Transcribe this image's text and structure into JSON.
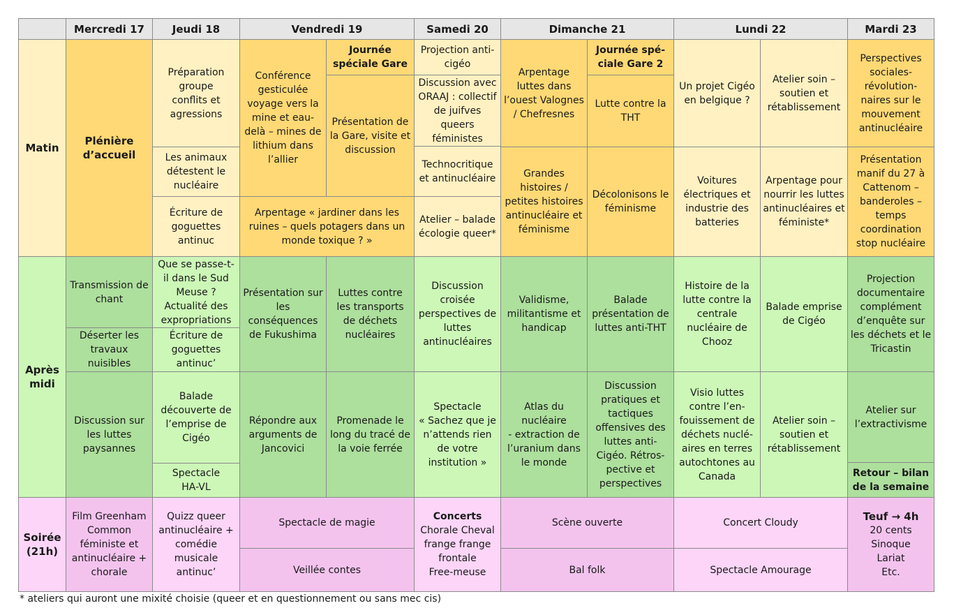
{
  "title": "",
  "colors": {
    "header": "#e6e6e6",
    "matin_dark": "#fed975",
    "matin_light": "#fff1c2",
    "apres_dark": "#addf9d",
    "apres_light": "#ccf7b7",
    "soiree_dark": "#f3c3ee",
    "soiree_light": "#fcd5f8",
    "border": "#8a8a8a"
  },
  "days": [
    "Mercredi 17",
    "Jeudi 18",
    "Vendredi 19",
    "Samedi 20",
    "Dimanche 21",
    "Lundi 22",
    "Mardi 23"
  ],
  "periods": {
    "matin": "Matin",
    "apres": "Après\nmidi",
    "soiree": "Soirée\n(21h)"
  },
  "sessions": {
    "s01": "Plénière\nd’accueil",
    "s02": "Préparation\ngroupe\nconflits et\nagressions",
    "s03": "Les animaux\ndétestent le\nnucléaire",
    "s04": "Écriture de\ngoguettes\nantinuc",
    "s05": "Conférence\ngesticulée\nvoyage vers la\nmine et eau-\ndelà – mines de\nlithium dans\nl’allier",
    "s06": "Journée\nspéciale Gare",
    "s07": "Présentation de\nla Gare, visite et\ndiscussion",
    "s08": "Arpentage « jardiner dans les\nruines – quels potagers dans un\nmonde toxique ? »",
    "s09": "Projection anti-\ncigéo",
    "s10": "Discussion avec\nORAAJ : collectif\nde juifves\nqueers\nféministes",
    "s11": "Technocritique\net antinucléaire",
    "s12": "Atelier – balade\nécologie queer*",
    "s13": "Arpentage\nluttes dans\nl’ouest Valognes\n/ Chefresnes",
    "s14": "Grandes\nhistoires /\npetites histoires\nantinucléaire et\nféminisme",
    "s15": "Journée spé-\nciale Gare 2",
    "s16": "Lutte contre la\nTHT",
    "s17": "Décolonisons  le\nféminisme",
    "s18": "Un projet Cigéo\nen belgique ?",
    "s19": "Voitures\nélectriques et\nindustrie des\nbatteries",
    "s20": "Atelier soin –\nsoutien et\nrétablissement",
    "s21": "Arpentage pour\nnourrir les luttes\nantinucléaires et\nféministe*",
    "s22": "Perspectives\nsociales-\nrévolution-\nnaires sur le\nmouvement\nantinucléaire",
    "s23": "Présentation\nmanif du 27 à\nCattenom –\nbanderoles –\ntemps\ncoordination\nstop nucléaire",
    "s24": "Transmission de\nchant",
    "s25": "Déserter les\ntravaux\nnuisibles",
    "s26": "Discussion sur\nles luttes\npaysannes",
    "s27": "Que se passe-t-\nil dans le Sud\nMeuse ?\nActualité des\nexpropriations",
    "s28": "Écriture de\ngoguettes\nantinuc’",
    "s29": "Balade\ndécouverte de\nl’emprise de\nCigéo",
    "s30": "Spectacle\nHA-VL",
    "s31": "Présentation sur\nles\nconséquences\nde Fukushima",
    "s32": "Luttes contre\nles transports\nde déchets\nnucléaires",
    "s33": "Répondre aux\narguments de\nJancovici",
    "s34": "Promenade le\nlong du tracé de\nla voie ferrée",
    "s35": "Discussion\ncroisée\nperspectives de\nluttes\nantinucléaires",
    "s36": "Spectacle\n« Sachez que je\nn’attends rien\nde votre\ninstitution »",
    "s37": "Validisme,\nmilitantisme et\nhandicap",
    "s38": "Atlas du\nnucléaire\n- extraction de\nl’uranium dans\nle monde",
    "s39": "Balade\nprésentation de\nluttes anti-THT",
    "s40": "Discussion\npratiques et\ntactiques\noffensives des\nluttes anti-\nCigéo. Rétros-\npective et\nperspectives",
    "s41": "Histoire de la\nlutte contre la\ncentrale\nnucléaire de\nChooz",
    "s42": "Visio luttes\ncontre l’en-\nfouissement de\ndéchets nuclé-\naires en terres\nautochtones au\nCanada",
    "s43": "Balade emprise\nde Cigéo",
    "s44": "Atelier soin –\nsoutien et\nrétablissement",
    "s45": "Projection\ndocumentaire\ncomplément\nd’enquête sur\nles déchets et le\nTricastin",
    "s46": "Atelier sur\nl’extractivisme",
    "s47": "Retour – bilan\nde la semaine",
    "s48": "Film Greenham\nCommon\nféministe et\nantinucléaire  +\nchorale",
    "s49": "Quizz queer\nantinucléaire  +\ncomédie\nmusicale\nantinuc’",
    "s50": "Spectacle de magie",
    "s51": "Veillée contes",
    "s52a": "Concerts",
    "s52b": "Chorale Cheval\nfrange frange\nfrontale\nFree-meuse",
    "s53": "Scène ouverte",
    "s54": "Bal folk",
    "s55": "Concert Cloudy",
    "s56": "Spectacle Amourage",
    "s57a": "Teuf → 4h",
    "s57b": "20 cents\nSinoque\nLariat\nEtc."
  },
  "footnote": "* ateliers qui auront une mixité choisie (queer et en questionnement ou sans mec cis)"
}
